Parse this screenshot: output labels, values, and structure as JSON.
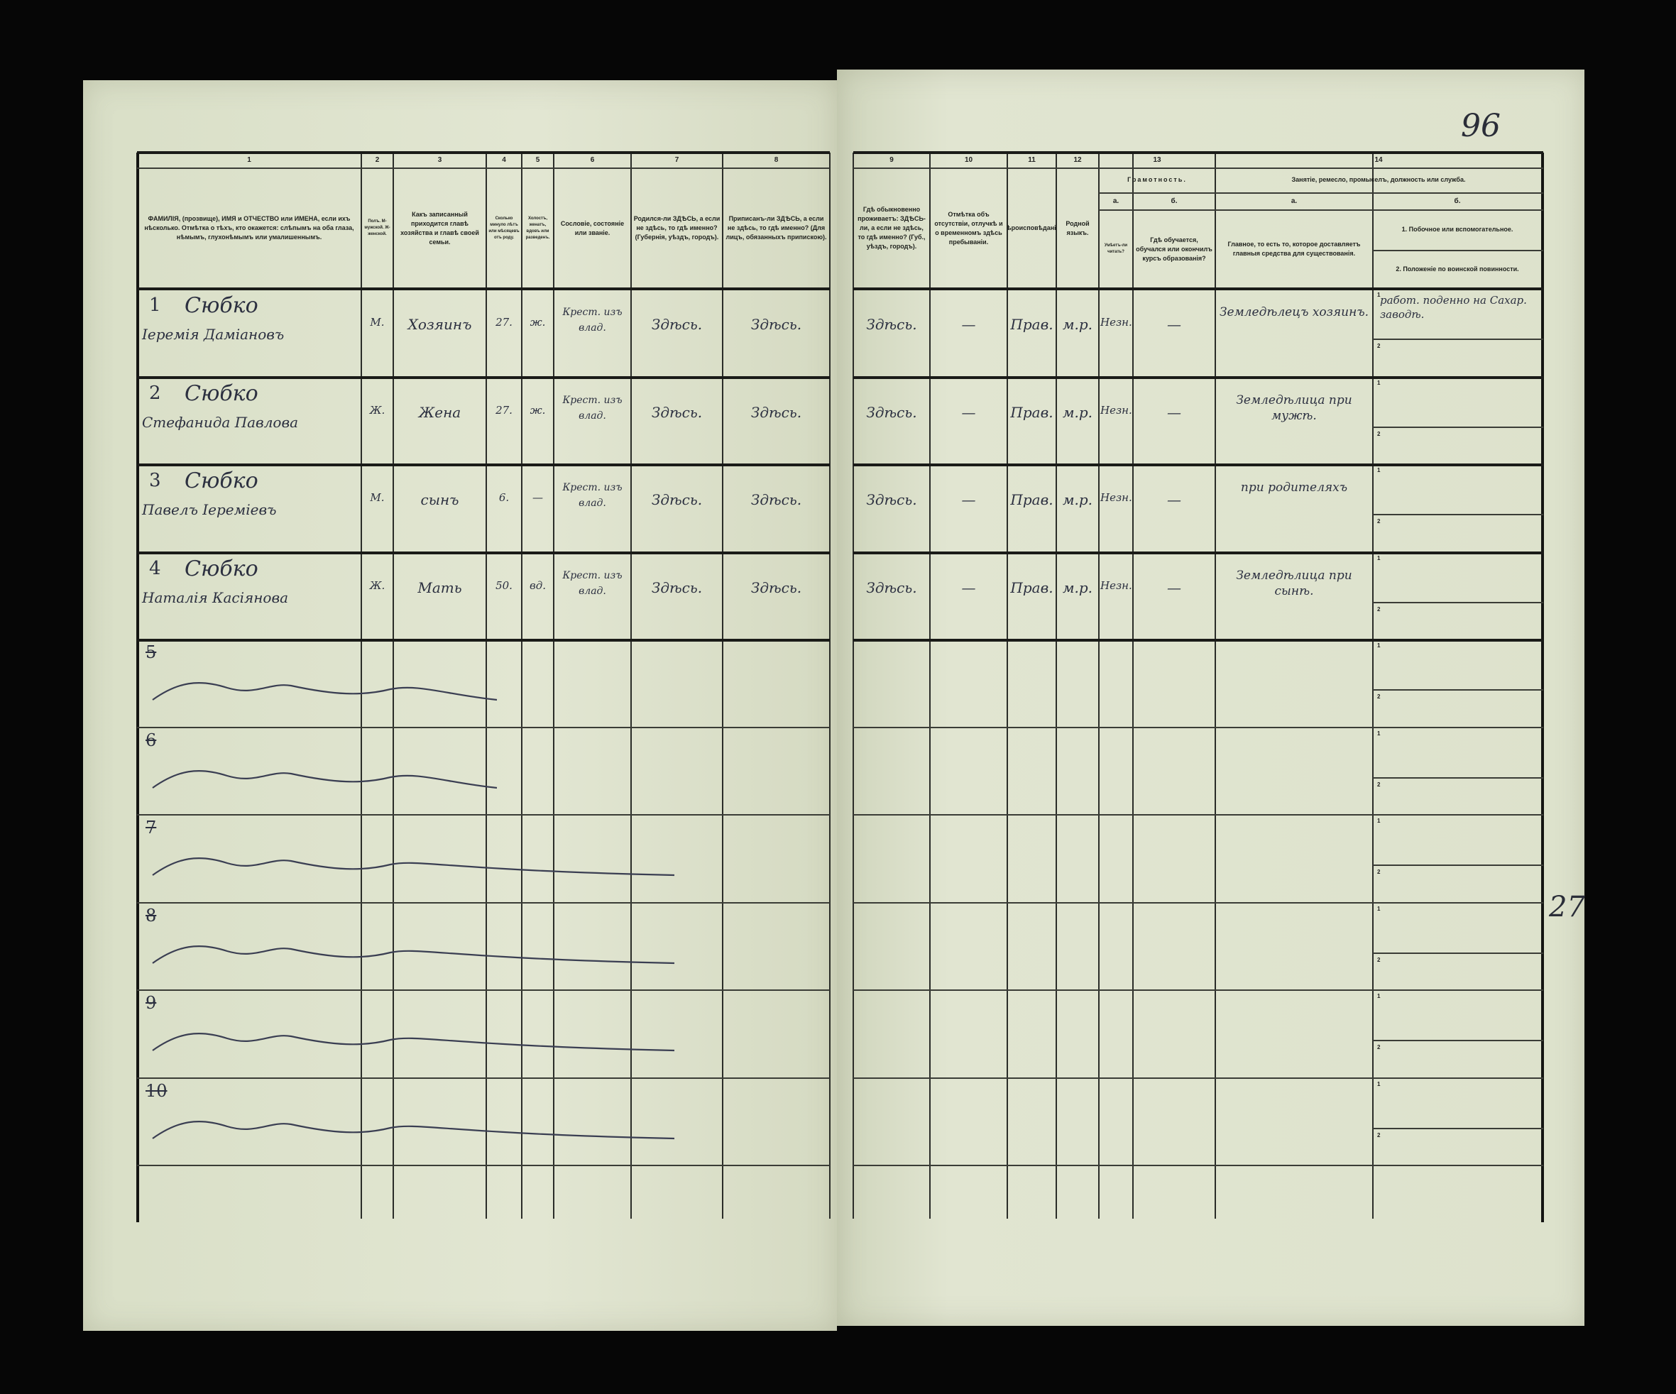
{
  "page_number": "96",
  "margin_number": "27",
  "headers": {
    "c1": {
      "num": "1",
      "text": "ФАМИЛІЯ, (прозвище), ИМЯ и ОТЧЕСТВО или ИМЕНА, если ихъ нѣсколько. Отмѣтка о тѣхъ, кто окажется: слѣпымъ на оба глаза, нѣмымъ, глухонѣмымъ или умалишеннымъ."
    },
    "c2": {
      "num": "2",
      "text": "Полъ. М-мужской. Ж-женской."
    },
    "c3": {
      "num": "3",
      "text": "Какъ записанный приходится главѣ хозяйства и главѣ своей семьи."
    },
    "c4": {
      "num": "4",
      "text": "Сколько минуло лѣтъ или мѣсяцевъ отъ роду."
    },
    "c5": {
      "num": "5",
      "text": "Холостъ, женатъ, вдовъ или разведенъ."
    },
    "c6": {
      "num": "6",
      "text": "Сословіе, состояніе или званіе."
    },
    "c7": {
      "num": "7",
      "text": "Родился-ли ЗДѢСЬ, а если не здѣсь, то гдѣ именно? (Губернія, уѣздъ, городъ)."
    },
    "c8": {
      "num": "8",
      "text": "Приписанъ-ли ЗДѢСЬ, а если не здѣсь, то гдѣ именно? (Для лицъ, обязанныхъ припискою)."
    },
    "c9": {
      "num": "9",
      "text": "Гдѣ обыкновенно проживаетъ: ЗДѢСЬ-ли, а если не здѣсь, то гдѣ именно? (Губ., уѣздъ, городъ)."
    },
    "c10": {
      "num": "10",
      "text": "Отмѣтка объ отсутствіи, отлучкѣ и о временномъ здѣсь пребываніи."
    },
    "c11": {
      "num": "11",
      "text": "Вѣроисповѣданіе."
    },
    "c12": {
      "num": "12",
      "text": "Родной языкъ."
    },
    "c13": {
      "num": "13",
      "title": "Грамотность.",
      "a_letter": "а.",
      "b_letter": "б.",
      "a": "Умѣетъ-ли читать?",
      "b": "Гдѣ обучается, обучался или окончилъ курсъ образованія?"
    },
    "c14": {
      "num": "14",
      "title": "Занятіе, ремесло, промыселъ, должность или служба.",
      "a_letter": "а.",
      "b_letter": "б.",
      "a": "Главное, то есть то, которое доставляетъ главныя средства для существованія.",
      "b1": "1. Побочное или вспомогательное.",
      "b2": "2. Положеніе по воинской повинности."
    }
  },
  "rows": [
    {
      "n": "1",
      "surname": "Сюбко",
      "given": "Іеремія Даміановъ",
      "sex": "М.",
      "relation": "Хозяинъ",
      "age": "27.",
      "marital": "ж.",
      "estate": "Крест. изъ влад.",
      "born": "Здѣсь.",
      "registered": "Здѣсь.",
      "residence": "Здѣсь.",
      "absence": "—",
      "religion": "Прав.",
      "language": "м.р.",
      "literate": "Незн.",
      "education": "—",
      "occupation": "Земледѣлецъ хозяинъ.",
      "side_1": "работ. поденно на Сахар. заводѣ.",
      "side_2": ""
    },
    {
      "n": "2",
      "surname": "Сюбко",
      "given": "Стефанида Павлова",
      "sex": "Ж.",
      "relation": "Жена",
      "age": "27.",
      "marital": "ж.",
      "estate": "Крест. изъ влад.",
      "born": "Здѣсь.",
      "registered": "Здѣсь.",
      "residence": "Здѣсь.",
      "absence": "—",
      "religion": "Прав.",
      "language": "м.р.",
      "literate": "Незн.",
      "education": "—",
      "occupation": "Земледѣлица при мужѣ.",
      "side_1": "",
      "side_2": ""
    },
    {
      "n": "3",
      "surname": "Сюбко",
      "given": "Павелъ Іереміевъ",
      "sex": "М.",
      "relation": "сынъ",
      "age": "6.",
      "marital": "—",
      "estate": "Крест. изъ влад.",
      "born": "Здѣсь.",
      "registered": "Здѣсь.",
      "residence": "Здѣсь.",
      "absence": "—",
      "religion": "Прав.",
      "language": "м.р.",
      "literate": "Незн.",
      "education": "—",
      "occupation": "при родителяхъ",
      "side_1": "",
      "side_2": ""
    },
    {
      "n": "4",
      "surname": "Сюбко",
      "given": "Наталія Касіянова",
      "sex": "Ж.",
      "relation": "Мать",
      "age": "50.",
      "marital": "вд.",
      "estate": "Крест. изъ влад.",
      "born": "Здѣсь.",
      "registered": "Здѣсь.",
      "residence": "Здѣсь.",
      "absence": "—",
      "religion": "Прав.",
      "language": "м.р.",
      "literate": "Незн.",
      "education": "—",
      "occupation": "Земледѣлица при сынѣ.",
      "side_1": "",
      "side_2": ""
    }
  ],
  "empty_rows": [
    "5",
    "6",
    "7",
    "8",
    "9",
    "10"
  ],
  "sub_labels": {
    "one": "1",
    "two": "2"
  },
  "colors": {
    "paper": "#dde2cc",
    "ink": "#2c3040",
    "rule": "#2a2c28",
    "background": "#060606"
  }
}
